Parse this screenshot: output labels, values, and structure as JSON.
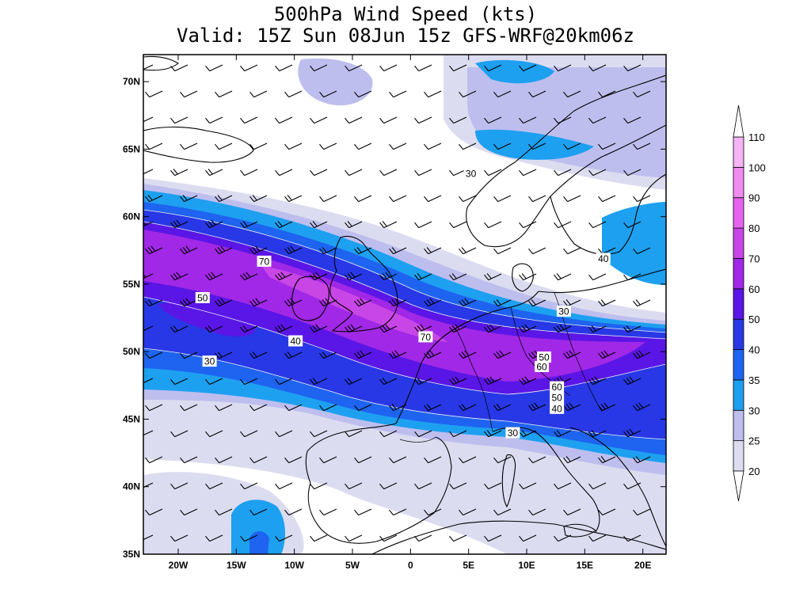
{
  "title": {
    "line1": "500hPa Wind Speed (kts)",
    "line2": "Valid: 15Z Sun 08Jun 15z GFS-WRF@20km06z"
  },
  "map": {
    "lon_range": [
      -23,
      22
    ],
    "lat_range": [
      35,
      72
    ],
    "x_ticks": [
      {
        "lon": -20,
        "label": "20W"
      },
      {
        "lon": -15,
        "label": "15W"
      },
      {
        "lon": -10,
        "label": "10W"
      },
      {
        "lon": -5,
        "label": "5W"
      },
      {
        "lon": 0,
        "label": "0"
      },
      {
        "lon": 5,
        "label": "5E"
      },
      {
        "lon": 10,
        "label": "10E"
      },
      {
        "lon": 15,
        "label": "15E"
      },
      {
        "lon": 20,
        "label": "20E"
      }
    ],
    "y_ticks": [
      {
        "lat": 35,
        "label": "35N"
      },
      {
        "lat": 40,
        "label": "40N"
      },
      {
        "lat": 45,
        "label": "45N"
      },
      {
        "lat": 50,
        "label": "50N"
      },
      {
        "lat": 55,
        "label": "55N"
      },
      {
        "lat": 60,
        "label": "60N"
      },
      {
        "lat": 65,
        "label": "65N"
      },
      {
        "lat": 70,
        "label": "70N"
      }
    ],
    "contour_labels": [
      {
        "text": "30",
        "lon": 5.2,
        "lat": 63.2
      },
      {
        "text": "70",
        "lon": -12.6,
        "lat": 56.7
      },
      {
        "text": "50",
        "lon": -17.9,
        "lat": 54.0
      },
      {
        "text": "40",
        "lon": -9.9,
        "lat": 50.8
      },
      {
        "text": "30",
        "lon": -17.3,
        "lat": 49.3
      },
      {
        "text": "70",
        "lon": 1.3,
        "lat": 51.1
      },
      {
        "text": "40",
        "lon": 16.6,
        "lat": 56.9
      },
      {
        "text": "30",
        "lon": 13.2,
        "lat": 53.0
      },
      {
        "text": "50",
        "lon": 11.5,
        "lat": 49.6
      },
      {
        "text": "60",
        "lon": 11.3,
        "lat": 48.9
      },
      {
        "text": "60",
        "lon": 12.6,
        "lat": 47.4
      },
      {
        "text": "50",
        "lon": 12.6,
        "lat": 46.6
      },
      {
        "text": "40",
        "lon": 12.6,
        "lat": 45.8
      },
      {
        "text": "30",
        "lon": 8.8,
        "lat": 44.0
      }
    ]
  },
  "colorbar": {
    "levels": [
      "20",
      "25",
      "30",
      "35",
      "40",
      "50",
      "60",
      "70",
      "80",
      "90",
      "100",
      "110"
    ],
    "colors": [
      "#dcdcf1",
      "#bebeee",
      "#1ea0f0",
      "#1e64f0",
      "#2838e6",
      "#5a16e6",
      "#a028e6",
      "#c846e6",
      "#e664f0",
      "#f08cf0",
      "#f5b4f5"
    ]
  }
}
